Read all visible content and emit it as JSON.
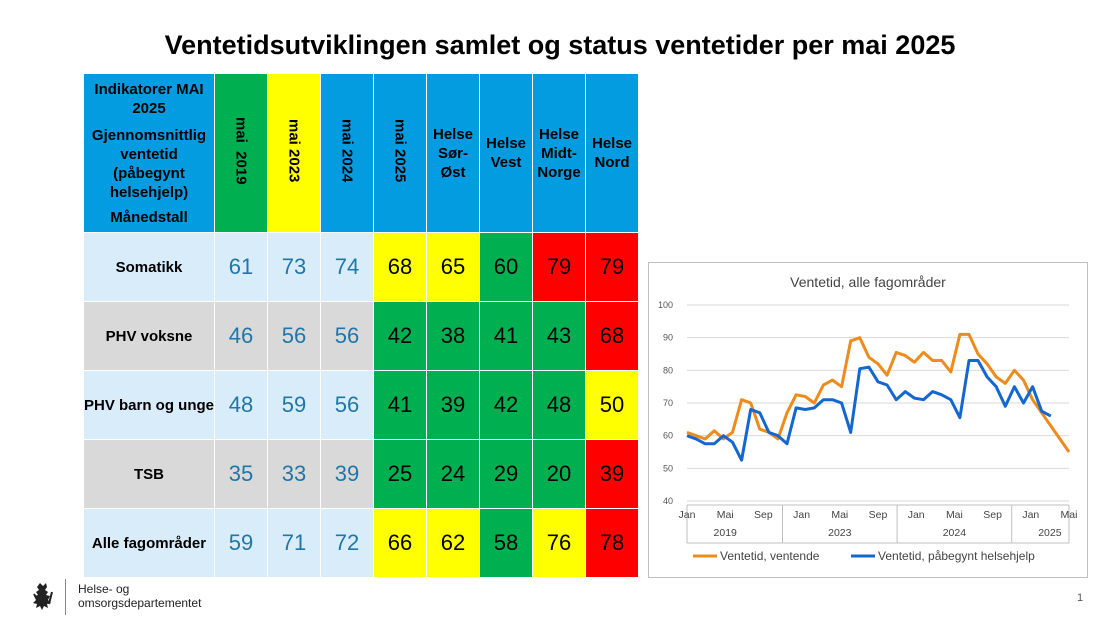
{
  "title": "Ventetidsutviklingen samlet og status ventetider per mai 2025",
  "table": {
    "header": {
      "line1": "Indikatorer MAI 2025",
      "line2": "Gjennomsnittlig ventetid (påbegynt helsehjelp)",
      "line3": "Månedstall",
      "columns": [
        "mai  2019",
        "mai 2023",
        "mai 2024",
        "mai 2025",
        "Helse Sør-Øst",
        "Helse Vest",
        "Helse Midt-Norge",
        "Helse Nord"
      ]
    },
    "rows": [
      {
        "label": "Somatikk",
        "values": [
          "61",
          "73",
          "74",
          "68",
          "65",
          "60",
          "79",
          "79"
        ]
      },
      {
        "label": "PHV voksne",
        "values": [
          "46",
          "56",
          "56",
          "42",
          "38",
          "41",
          "43",
          "68"
        ]
      },
      {
        "label": "PHV barn og unge",
        "values": [
          "48",
          "59",
          "56",
          "41",
          "39",
          "42",
          "48",
          "50"
        ]
      },
      {
        "label": "TSB",
        "values": [
          "35",
          "33",
          "39",
          "25",
          "24",
          "29",
          "20",
          "39"
        ]
      },
      {
        "label": "Alle fagområder",
        "values": [
          "59",
          "71",
          "72",
          "66",
          "62",
          "58",
          "76",
          "78"
        ]
      }
    ]
  },
  "chart_data": {
    "type": "line",
    "title": "Ventetid, alle fagområder",
    "ylim": [
      40,
      100
    ],
    "yticks": [
      "100",
      "90",
      "80",
      "70",
      "60",
      "50",
      "40"
    ],
    "xtick_labels": [
      "Jan",
      "Mai",
      "Sep",
      "Jan",
      "Mai",
      "Sep",
      "Jan",
      "Mai",
      "Sep",
      "Jan",
      "Mai"
    ],
    "years": [
      "2019",
      "2023",
      "2024",
      "2025"
    ],
    "series": [
      {
        "name": "Ventetid, ventende",
        "color": "#ed8b1c",
        "values": [
          61,
          60,
          59,
          61.5,
          59,
          61,
          71,
          70,
          62,
          61,
          59,
          67,
          72.5,
          72,
          70,
          75.5,
          77,
          75,
          89,
          90,
          84,
          82,
          78.5,
          85.5,
          84.5,
          82.5,
          85.5,
          83,
          83,
          79.5,
          91,
          91,
          85,
          82,
          78,
          76,
          80,
          77,
          71,
          67,
          63,
          59,
          55
        ]
      },
      {
        "name": "Ventetid, påbegynt helsehjelp",
        "color": "#1467cf",
        "values": [
          60,
          59,
          57.5,
          57.5,
          60,
          58,
          52.5,
          68,
          67,
          61,
          60,
          57.5,
          68.5,
          68,
          68.5,
          71,
          71,
          70,
          61,
          80.5,
          81,
          76.5,
          75.5,
          71,
          73.5,
          71.5,
          71,
          73.5,
          72.5,
          71,
          65.5,
          83,
          83,
          78,
          75,
          69,
          75,
          70,
          75,
          67.5,
          66
        ]
      }
    ]
  },
  "org": {
    "line1": "Helse- og",
    "line2": "omsorgsdepartementet"
  },
  "page_number": "1"
}
